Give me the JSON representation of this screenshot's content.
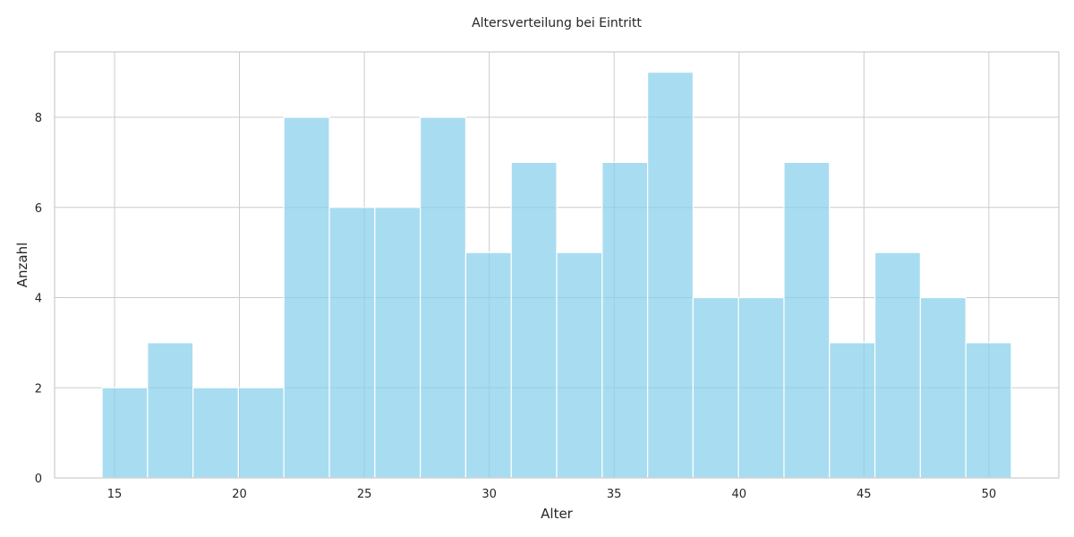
{
  "chart_data": {
    "type": "bar",
    "title": "Altersverteilung bei Eintritt",
    "xlabel": "Alter",
    "ylabel": "Anzahl",
    "xlim": [
      12.6,
      52.8
    ],
    "ylim": [
      0,
      9.45
    ],
    "xticks": [
      15,
      20,
      25,
      30,
      35,
      40,
      45,
      50
    ],
    "yticks": [
      0,
      2,
      4,
      6,
      8
    ],
    "bins": [
      {
        "start": 14.5,
        "end": 16.32,
        "count": 2
      },
      {
        "start": 16.32,
        "end": 18.14,
        "count": 3
      },
      {
        "start": 18.14,
        "end": 19.96,
        "count": 2
      },
      {
        "start": 19.96,
        "end": 21.78,
        "count": 2
      },
      {
        "start": 21.78,
        "end": 23.6,
        "count": 8
      },
      {
        "start": 23.6,
        "end": 25.42,
        "count": 6
      },
      {
        "start": 25.42,
        "end": 27.24,
        "count": 6
      },
      {
        "start": 27.24,
        "end": 29.06,
        "count": 8
      },
      {
        "start": 29.06,
        "end": 30.88,
        "count": 5
      },
      {
        "start": 30.88,
        "end": 32.7,
        "count": 7
      },
      {
        "start": 32.7,
        "end": 34.52,
        "count": 5
      },
      {
        "start": 34.52,
        "end": 36.34,
        "count": 7
      },
      {
        "start": 36.34,
        "end": 38.16,
        "count": 9
      },
      {
        "start": 38.16,
        "end": 39.98,
        "count": 4
      },
      {
        "start": 39.98,
        "end": 41.8,
        "count": 4
      },
      {
        "start": 41.8,
        "end": 43.62,
        "count": 7
      },
      {
        "start": 43.62,
        "end": 45.44,
        "count": 3
      },
      {
        "start": 45.44,
        "end": 47.26,
        "count": 5
      },
      {
        "start": 47.26,
        "end": 49.08,
        "count": 4
      },
      {
        "start": 49.08,
        "end": 50.9,
        "count": 3
      }
    ],
    "grid": true,
    "bar_color": "#87ceeb",
    "bar_opacity": 0.72,
    "bar_edge_color": "#ffffff"
  }
}
